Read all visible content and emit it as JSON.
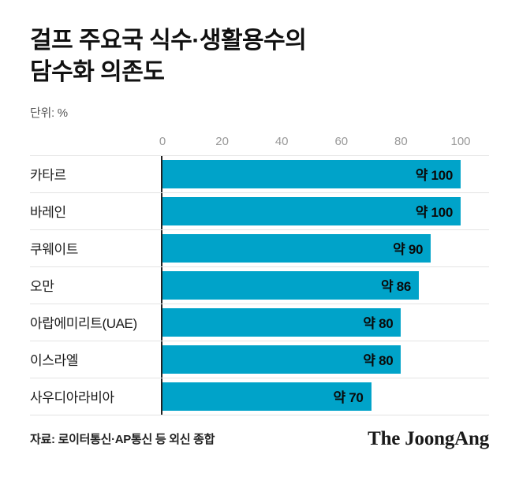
{
  "header": {
    "title_line1": "걸프 주요국 식수·생활용수의",
    "title_line2": "담수화 의존도",
    "unit_label": "단위: %"
  },
  "chart_data": {
    "type": "bar",
    "orientation": "horizontal",
    "title": "걸프 주요국 식수·생활용수의 담수화 의존도",
    "unit": "%",
    "categories": [
      "카타르",
      "바레인",
      "쿠웨이트",
      "오만",
      "아랍에미리트(UAE)",
      "이스라엘",
      "사우디아라비아"
    ],
    "values": [
      100,
      100,
      90,
      86,
      80,
      80,
      70
    ],
    "value_labels": [
      "약 100",
      "약 100",
      "약 90",
      "약 86",
      "약 80",
      "약 80",
      "약 70"
    ],
    "xlim": [
      0,
      100
    ],
    "x_ticks": [
      0,
      20,
      40,
      60,
      80,
      100
    ],
    "bar_color": "#00a3c9",
    "grid": "row-separators",
    "legend": "none"
  },
  "footer": {
    "source": "자료: 로이터통신·AP통신 등 외신 종합",
    "logo": "The JoongAng"
  }
}
